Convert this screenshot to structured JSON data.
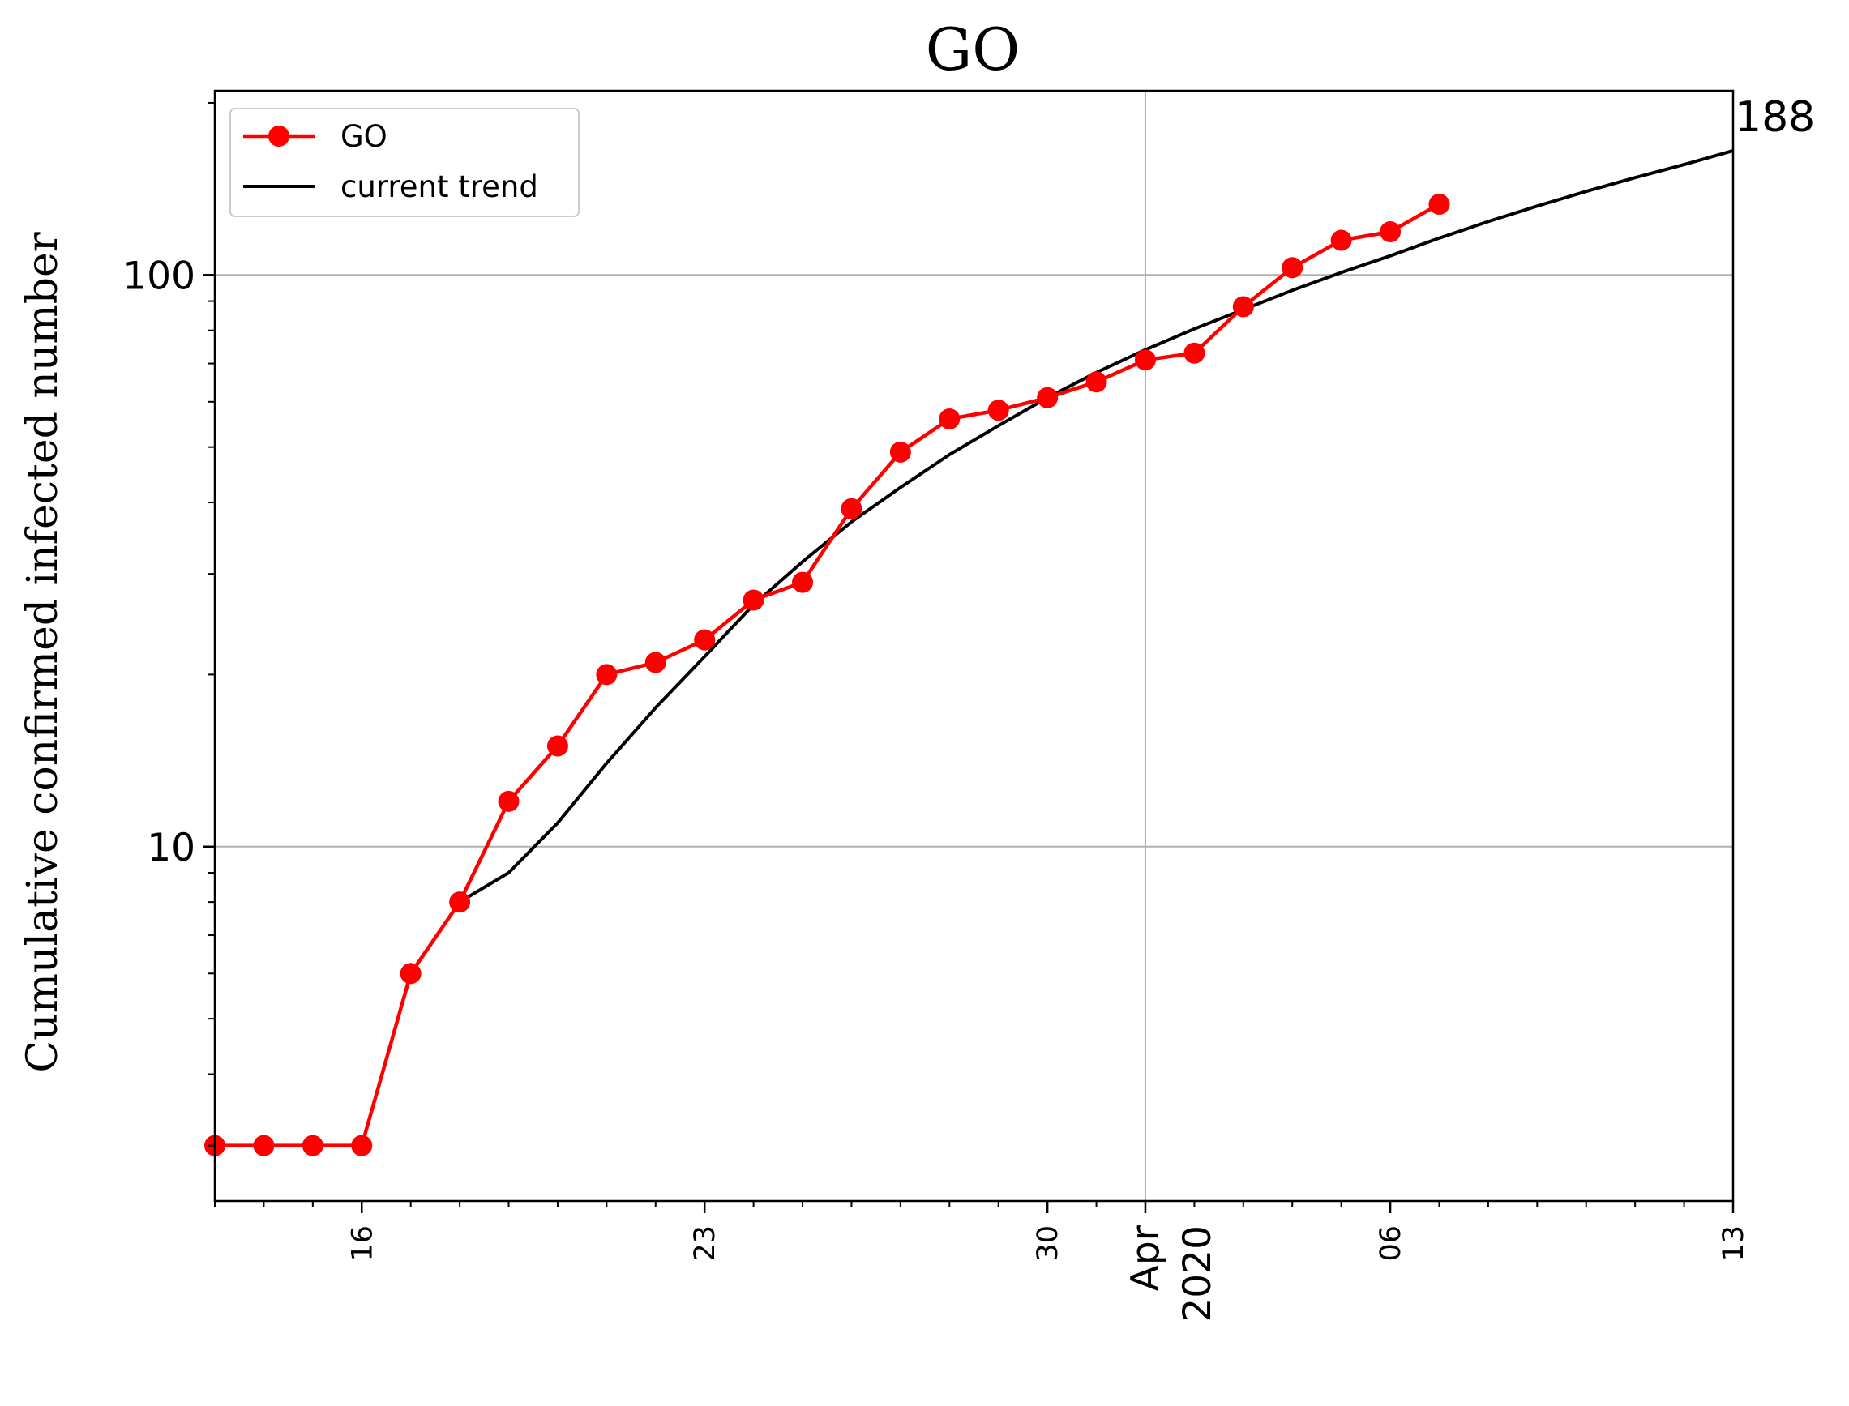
{
  "chart_data": {
    "type": "line",
    "title": "GO",
    "xlabel": "",
    "ylabel": "Cumulative confirmed infected number",
    "y_scale": "log",
    "xlim": [
      "2020-03-13",
      "2020-04-13"
    ],
    "ylim": [
      2.4,
      210
    ],
    "grid": true,
    "legend_position": "top-left",
    "x_major_ticks": [
      {
        "date": "2020-03-16",
        "label": "16"
      },
      {
        "date": "2020-03-23",
        "label": "23"
      },
      {
        "date": "2020-03-30",
        "label": "30"
      },
      {
        "date": "2020-04-06",
        "label": "06"
      },
      {
        "date": "2020-04-13",
        "label": "13"
      }
    ],
    "x_month_label": {
      "date": "2020-04-01",
      "month": "Apr",
      "year": "2020"
    },
    "y_ticks": [
      {
        "value": 10,
        "label": "10"
      },
      {
        "value": 100,
        "label": "100"
      }
    ],
    "series": [
      {
        "name": "GO",
        "color": "#ff0000",
        "marker": "circle",
        "x": [
          "2020-03-13",
          "2020-03-14",
          "2020-03-15",
          "2020-03-16",
          "2020-03-17",
          "2020-03-18",
          "2020-03-19",
          "2020-03-20",
          "2020-03-21",
          "2020-03-22",
          "2020-03-23",
          "2020-03-24",
          "2020-03-25",
          "2020-03-26",
          "2020-03-27",
          "2020-03-28",
          "2020-03-29",
          "2020-03-30",
          "2020-03-31",
          "2020-04-01",
          "2020-04-02",
          "2020-04-03",
          "2020-04-04",
          "2020-04-05",
          "2020-04-06",
          "2020-04-07"
        ],
        "values": [
          3,
          3,
          3,
          3,
          6,
          8,
          12,
          15,
          20,
          21,
          23,
          27,
          29,
          39,
          49,
          56,
          58,
          61,
          65,
          71,
          73,
          88,
          103,
          115,
          119,
          133
        ]
      },
      {
        "name": "current trend",
        "color": "#000000",
        "marker": "none",
        "x": [
          "2020-03-18",
          "2020-03-19",
          "2020-03-20",
          "2020-03-21",
          "2020-03-22",
          "2020-03-23",
          "2020-03-24",
          "2020-03-25",
          "2020-03-26",
          "2020-03-27",
          "2020-03-28",
          "2020-03-29",
          "2020-03-30",
          "2020-03-31",
          "2020-04-01",
          "2020-04-02",
          "2020-04-03",
          "2020-04-04",
          "2020-04-05",
          "2020-04-06",
          "2020-04-07",
          "2020-04-08",
          "2020-04-09",
          "2020-04-10",
          "2020-04-11",
          "2020-04-12",
          "2020-04-13"
        ],
        "values": [
          8,
          9,
          11,
          14,
          17.5,
          21.5,
          26.5,
          31.5,
          37,
          42.5,
          48.5,
          54.5,
          61,
          67.5,
          74,
          80.5,
          87,
          94,
          101,
          108,
          116,
          124,
          132,
          140,
          148,
          156,
          165
        ]
      }
    ],
    "annotations": [
      {
        "text": "188",
        "x": "2020-04-13",
        "y": 188
      }
    ]
  }
}
